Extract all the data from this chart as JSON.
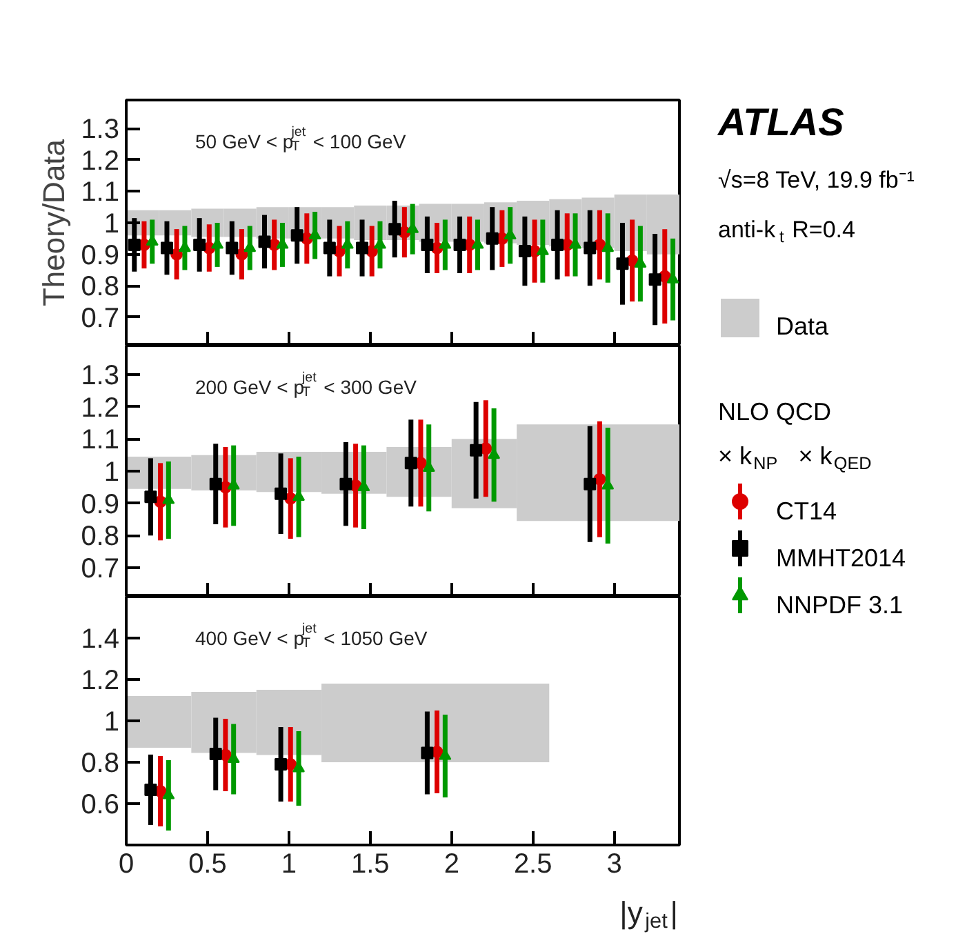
{
  "chart_data": [
    {
      "type": "scatter",
      "ylabel": "Theory/Data",
      "legend": "right",
      "legend_title": "NLO QCD\n× k$_{NP}$   × k$_{QED}$",
      "annotations": [
        "50 GeV < p$^{jet}$$_{T}$ < 100 GeV",
        "ATLAS",
        "√s=8 TeV, 19.9 fb⁻¹",
        "anti-k$_{t}$ R=0.4"
      ],
      "xlim": [
        0,
        3.4
      ],
      "ylim": [
        0.61,
        1.39
      ],
      "xticks": [
        0,
        0.5,
        1,
        1.5,
        2,
        2.5,
        3
      ],
      "yticks": [
        0.7,
        0.8,
        0.9,
        1,
        1.1,
        1.2,
        1.3
      ],
      "tick_labels": "y",
      "grid": false,
      "series": [
        {
          "name": "Data",
          "type": "bar",
          "color": "#cccccc",
          "x": [
            0.1,
            0.3,
            0.5,
            0.7,
            0.9,
            1.1,
            1.3,
            1.5,
            1.7,
            1.9,
            2.1,
            2.3,
            2.5,
            2.7,
            2.9,
            3.1,
            3.3
          ],
          "base": [
            0.96,
            0.96,
            0.955,
            0.955,
            0.95,
            0.95,
            0.95,
            0.945,
            0.945,
            0.94,
            0.94,
            0.935,
            0.93,
            0.925,
            0.92,
            0.91,
            0.9
          ],
          "values": [
            0.08,
            0.08,
            0.09,
            0.09,
            0.1,
            0.1,
            0.1,
            0.11,
            0.11,
            0.12,
            0.12,
            0.13,
            0.14,
            0.15,
            0.16,
            0.18,
            0.19
          ]
        },
        {
          "name": "CT14",
          "color": "#dd0000",
          "marker": "circle",
          "x": [
            0.11,
            0.31,
            0.51,
            0.71,
            0.91,
            1.11,
            1.31,
            1.51,
            1.71,
            1.91,
            2.11,
            2.31,
            2.51,
            2.71,
            2.91,
            3.11,
            3.31
          ],
          "values": [
            0.93,
            0.9,
            0.92,
            0.9,
            0.93,
            0.95,
            0.91,
            0.91,
            0.97,
            0.92,
            0.93,
            0.95,
            0.91,
            0.93,
            0.93,
            0.88,
            0.83
          ],
          "errors": [
            0.075,
            0.08,
            0.075,
            0.08,
            0.08,
            0.08,
            0.08,
            0.08,
            0.08,
            0.08,
            0.09,
            0.09,
            0.1,
            0.1,
            0.11,
            0.13,
            0.15
          ]
        },
        {
          "name": "MMHT2014",
          "color": "#000000",
          "marker": "square",
          "x": [
            0.05,
            0.25,
            0.45,
            0.65,
            0.85,
            1.05,
            1.25,
            1.45,
            1.65,
            1.85,
            2.05,
            2.25,
            2.45,
            2.65,
            2.85,
            3.05,
            3.25
          ],
          "values": [
            0.93,
            0.92,
            0.93,
            0.92,
            0.94,
            0.96,
            0.92,
            0.92,
            0.98,
            0.93,
            0.93,
            0.95,
            0.91,
            0.93,
            0.92,
            0.87,
            0.82
          ],
          "errors": [
            0.085,
            0.085,
            0.085,
            0.085,
            0.085,
            0.09,
            0.09,
            0.09,
            0.09,
            0.09,
            0.09,
            0.1,
            0.11,
            0.11,
            0.12,
            0.13,
            0.145
          ]
        },
        {
          "name": "NNPDF 3.1",
          "color": "#009900",
          "marker": "triangle",
          "x": [
            0.16,
            0.36,
            0.56,
            0.76,
            0.96,
            1.16,
            1.36,
            1.56,
            1.76,
            1.96,
            2.16,
            2.36,
            2.56,
            2.76,
            2.96,
            3.16,
            3.36
          ],
          "values": [
            0.94,
            0.92,
            0.93,
            0.92,
            0.93,
            0.96,
            0.93,
            0.93,
            0.98,
            0.93,
            0.93,
            0.96,
            0.91,
            0.93,
            0.92,
            0.87,
            0.82
          ],
          "errors": [
            0.07,
            0.07,
            0.07,
            0.07,
            0.07,
            0.075,
            0.075,
            0.075,
            0.08,
            0.08,
            0.08,
            0.09,
            0.1,
            0.1,
            0.11,
            0.12,
            0.13
          ]
        }
      ]
    },
    {
      "type": "scatter",
      "annotations": [
        "200 GeV < p$^{jet}$$_{T}$ < 300 GeV"
      ],
      "xlim": [
        0,
        3.4
      ],
      "ylim": [
        0.61,
        1.39
      ],
      "xticks": [
        0,
        0.5,
        1,
        1.5,
        2,
        2.5,
        3
      ],
      "yticks": [
        0.7,
        0.8,
        0.9,
        1,
        1.1,
        1.2,
        1.3
      ],
      "tick_labels": "y",
      "grid": false,
      "series": [
        {
          "type": "bar",
          "color": "#cccccc",
          "x": [
            0.2,
            0.6,
            1.0,
            1.4,
            1.8,
            2.2,
            2.9
          ],
          "base": [
            0.945,
            0.94,
            0.935,
            0.93,
            0.92,
            0.885,
            0.845
          ],
          "values": [
            0.1,
            0.11,
            0.125,
            0.13,
            0.155,
            0.215,
            0.3
          ]
        },
        {
          "color": "#dd0000",
          "marker": "circle",
          "x": [
            0.21,
            0.61,
            1.01,
            1.41,
            1.81,
            2.21,
            2.91
          ],
          "values": [
            0.905,
            0.95,
            0.915,
            0.955,
            1.025,
            1.07,
            0.975
          ],
          "errors": [
            0.12,
            0.125,
            0.125,
            0.13,
            0.135,
            0.15,
            0.18
          ]
        },
        {
          "color": "#000000",
          "marker": "square",
          "x": [
            0.15,
            0.55,
            0.95,
            1.35,
            1.75,
            2.15,
            2.85
          ],
          "values": [
            0.92,
            0.96,
            0.93,
            0.96,
            1.025,
            1.065,
            0.96
          ],
          "errors": [
            0.12,
            0.125,
            0.125,
            0.13,
            0.135,
            0.15,
            0.18
          ]
        },
        {
          "color": "#009900",
          "marker": "triangle",
          "x": [
            0.26,
            0.66,
            1.06,
            1.46,
            1.86,
            2.26,
            2.96
          ],
          "values": [
            0.91,
            0.955,
            0.92,
            0.95,
            1.01,
            1.05,
            0.955
          ],
          "errors": [
            0.12,
            0.125,
            0.125,
            0.13,
            0.135,
            0.145,
            0.18
          ]
        }
      ]
    },
    {
      "type": "scatter",
      "xlabel": "|y$_{jet}$|",
      "annotations": [
        "400 GeV < p$^{jet}$$_{T}$ < 1050 GeV"
      ],
      "xlim": [
        0,
        3.4
      ],
      "ylim": [
        0.4,
        1.6
      ],
      "xticks": [
        0,
        0.5,
        1,
        1.5,
        2,
        2.5,
        3
      ],
      "yticks": [
        0.6,
        0.8,
        1,
        1.2,
        1.4
      ],
      "grid": false,
      "series": [
        {
          "type": "bar",
          "color": "#cccccc",
          "x": [
            0.2,
            0.6,
            1.0,
            1.9
          ],
          "base": [
            0.87,
            0.845,
            0.835,
            0.8
          ],
          "values": [
            0.25,
            0.295,
            0.315,
            0.38
          ]
        },
        {
          "color": "#dd0000",
          "marker": "circle",
          "x": [
            0.21,
            0.61,
            1.01,
            1.91
          ],
          "values": [
            0.66,
            0.835,
            0.79,
            0.85
          ],
          "errors": [
            0.17,
            0.175,
            0.18,
            0.2
          ]
        },
        {
          "color": "#000000",
          "marker": "square",
          "x": [
            0.15,
            0.55,
            0.95,
            1.85
          ],
          "values": [
            0.667,
            0.84,
            0.79,
            0.845
          ],
          "errors": [
            0.17,
            0.175,
            0.18,
            0.2
          ]
        },
        {
          "color": "#009900",
          "marker": "triangle",
          "x": [
            0.26,
            0.66,
            1.06,
            1.96
          ],
          "values": [
            0.64,
            0.815,
            0.77,
            0.83
          ],
          "errors": [
            0.17,
            0.17,
            0.18,
            0.2
          ]
        }
      ]
    }
  ]
}
